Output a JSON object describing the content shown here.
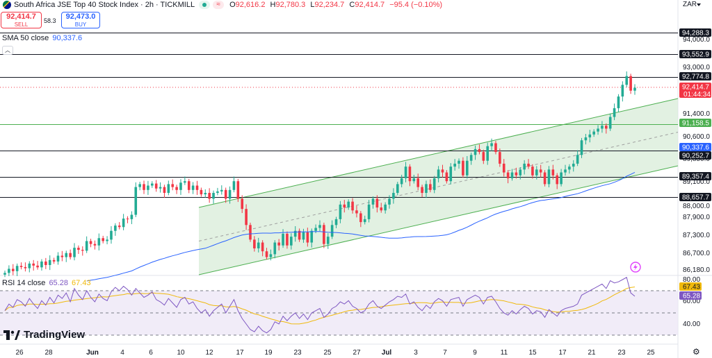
{
  "header": {
    "symbol": "South Africa JSE Top 40 Stock Index · 2h · TICKMILL",
    "open_label": "O",
    "open": "92,616.2",
    "high_label": "H",
    "high": "92,780.3",
    "low_label": "L",
    "low": "92,234.7",
    "close_label": "C",
    "close": "92,414.7",
    "change": "−95.4 (−0.10%)"
  },
  "trade": {
    "sell_price": "92,414.7",
    "sell_label": "SELL",
    "spread": "58.3",
    "buy_price": "92,473.0",
    "buy_label": "BUY"
  },
  "indicators": {
    "sma_label": "SMA 50 close",
    "sma_value": "90,337.6",
    "rsi_label": "RSI 14 close",
    "rsi_value": "65.28",
    "rsi_ma_value": "67.43"
  },
  "currency": "ZAR",
  "logo_text": "TradingView",
  "colors": {
    "up": "#22ab94",
    "down": "#f23645",
    "sma": "#2962ff",
    "rsi": "#7e57c2",
    "rsi_ma": "#f0b90b",
    "channel": "#c8e6c9"
  },
  "chart_data": {
    "type": "candlestick",
    "price_axis_ticks": [
      "94,000.0",
      "93,000.0",
      "91,400.0",
      "90,600.0",
      "89,850.0",
      "89,100.0",
      "88,000.0",
      "87,900.0",
      "87,300.0",
      "86,700.0",
      "86,180.0"
    ],
    "horizontal_levels": [
      "94,288.3",
      "93,552.9",
      "92,774.8",
      "91,158.5",
      "90,252.7",
      "89,357.4",
      "88,657.7"
    ],
    "price_badges": [
      {
        "value": "94,288.3",
        "kind": "level"
      },
      {
        "value": "93,552.9",
        "kind": "level"
      },
      {
        "value": "92,774.8",
        "kind": "level"
      },
      {
        "value": "92,414.7",
        "sub": "01:44:34",
        "kind": "last"
      },
      {
        "value": "91,158.5",
        "kind": "green-level"
      },
      {
        "value": "90,337.6",
        "kind": "sma"
      },
      {
        "value": "90,252.7",
        "kind": "level"
      },
      {
        "value": "89,357.4",
        "kind": "level"
      },
      {
        "value": "88,657.7",
        "kind": "level"
      }
    ],
    "x_axis_ticks": [
      "26",
      "28",
      "Jun",
      "4",
      "6",
      "10",
      "12",
      "17",
      "19",
      "23",
      "25",
      "27",
      "Jul",
      "3",
      "7",
      "9",
      "11",
      "15",
      "17",
      "21",
      "23",
      "25"
    ],
    "rsi_axis_ticks": [
      "80.00",
      "60.00",
      "40.00"
    ],
    "rsi_badges": [
      {
        "value": "67.43",
        "kind": "rsi-ma"
      },
      {
        "value": "65.28",
        "kind": "rsi"
      }
    ],
    "closes": [
      86060,
      86200,
      86120,
      86300,
      86260,
      86220,
      86380,
      86310,
      86250,
      86450,
      86330,
      86500,
      86450,
      86650,
      86600,
      86740,
      86600,
      86920,
      86850,
      86820,
      87150,
      87050,
      87000,
      87250,
      87150,
      87200,
      87500,
      87680,
      87630,
      87920,
      87900,
      88050,
      89000,
      89100,
      88900,
      89050,
      89120,
      88950,
      89000,
      88800,
      89100,
      89000,
      88900,
      89150,
      89200,
      88900,
      89050,
      88900,
      88750,
      88800,
      88600,
      88800,
      88850,
      88900,
      88600,
      88900,
      89200,
      88600,
      88250,
      87700,
      87200,
      86900,
      87100,
      86800,
      86600,
      86700,
      87100,
      87000,
      87400,
      87000,
      87300,
      87500,
      87200,
      87450,
      87100,
      87500,
      87600,
      87700,
      87050,
      87300,
      87700,
      87900,
      88400,
      88300,
      88500,
      88200,
      88100,
      87800,
      87900,
      88400,
      88600,
      88300,
      88200,
      88400,
      88600,
      88800,
      89100,
      89300,
      89700,
      89200,
      89300,
      89000,
      88800,
      89100,
      88900,
      89300,
      89600,
      89500,
      89200,
      89700,
      89800,
      89900,
      89400,
      89900,
      90100,
      90300,
      90200,
      89900,
      90400,
      90500,
      90200,
      89800,
      89500,
      89300,
      89500,
      89400,
      89600,
      89800,
      89700,
      89400,
      89600,
      89500,
      89100,
      89600,
      89400,
      89100,
      89500,
      89600,
      89700,
      89800,
      90100,
      90600,
      90700,
      90800,
      90900,
      91000,
      91100,
      91000,
      91400,
      91700,
      92100,
      92500,
      92800,
      92300,
      92400
    ],
    "rsi": [
      52,
      58,
      55,
      62,
      60,
      56,
      63,
      58,
      54,
      61,
      57,
      64,
      59,
      66,
      63,
      68,
      60,
      72,
      66,
      62,
      70,
      64,
      60,
      67,
      63,
      61,
      69,
      73,
      70,
      74,
      71,
      66,
      72,
      68,
      64,
      66,
      69,
      62,
      60,
      57,
      63,
      59,
      55,
      62,
      64,
      58,
      60,
      54,
      50,
      53,
      47,
      52,
      55,
      58,
      50,
      56,
      62,
      52,
      45,
      40,
      35,
      33,
      38,
      34,
      32,
      35,
      42,
      40,
      47,
      43,
      47,
      50,
      45,
      49,
      44,
      50,
      52,
      54,
      46,
      49,
      54,
      56,
      60,
      58,
      61,
      56,
      54,
      50,
      52,
      58,
      61,
      56,
      54,
      57,
      60,
      62,
      65,
      64,
      67,
      58,
      60,
      55,
      52,
      57,
      54,
      60,
      63,
      61,
      56,
      62,
      63,
      64,
      56,
      62,
      64,
      66,
      64,
      58,
      64,
      65,
      60,
      54,
      50,
      48,
      52,
      49,
      53,
      56,
      54,
      49,
      52,
      51,
      46,
      53,
      50,
      47,
      52,
      54,
      55,
      56,
      58,
      66,
      68,
      70,
      72,
      74,
      76,
      72,
      79,
      77,
      78,
      80,
      82,
      68,
      65
    ]
  }
}
